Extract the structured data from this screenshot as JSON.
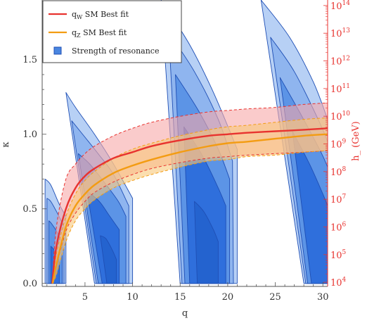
{
  "chart_data": {
    "type": "line",
    "title": "",
    "xlabel": "q",
    "ylabel": "κ",
    "y2label": "h_ (GeV)",
    "xlim": [
      0.5,
      30.5
    ],
    "ylim": [
      -0.02,
      1.9
    ],
    "y2lim_log10": [
      3.85,
      14.2
    ],
    "x_ticks": [
      5,
      10,
      15,
      20,
      25,
      30
    ],
    "y_ticks": [
      {
        "value": 0.0,
        "label": "0.0"
      },
      {
        "value": 0.5,
        "label": "0.5"
      },
      {
        "value": 1.0,
        "label": "1.0"
      },
      {
        "value": 1.5,
        "label": "1.5"
      }
    ],
    "y2_ticks": [
      {
        "exp": 4,
        "base": "10",
        "sup": "4"
      },
      {
        "exp": 5,
        "base": "10",
        "sup": "5"
      },
      {
        "exp": 6,
        "base": "10",
        "sup": "6"
      },
      {
        "exp": 7,
        "base": "10",
        "sup": "7"
      },
      {
        "exp": 8,
        "base": "10",
        "sup": "8"
      },
      {
        "exp": 9,
        "base": "10",
        "sup": "9"
      },
      {
        "exp": 10,
        "base": "10",
        "sup": "10"
      },
      {
        "exp": 11,
        "base": "10",
        "sup": "11"
      },
      {
        "exp": 12,
        "base": "10",
        "sup": "12"
      },
      {
        "exp": 13,
        "base": "10",
        "sup": "13"
      },
      {
        "exp": 14,
        "base": "10",
        "sup": "14"
      }
    ],
    "legend": {
      "placement": "top-left",
      "entries": [
        {
          "main": "q",
          "sub": "W",
          "rest": "  SM Best fit",
          "color": "#e8332f",
          "kind": "line"
        },
        {
          "main": "q",
          "sub": "Z",
          "rest": "  SM Best fit",
          "color": "#f39c12",
          "kind": "line"
        },
        {
          "main": "Strength of resonance",
          "sub": "",
          "rest": "",
          "color": "#4a86e0",
          "kind": "box"
        }
      ]
    },
    "series": [
      {
        "name": "q_W SM Best fit",
        "color": "#e8332f",
        "x": [
          1.55,
          2,
          3,
          4,
          5,
          6,
          8,
          10,
          12,
          15,
          18,
          20,
          22,
          25,
          28,
          30.5
        ],
        "y": [
          0.0,
          0.25,
          0.5,
          0.64,
          0.72,
          0.77,
          0.84,
          0.88,
          0.92,
          0.96,
          0.99,
          1.0,
          1.01,
          1.02,
          1.03,
          1.04
        ],
        "band_upper": [
          0.0,
          0.38,
          0.7,
          0.8,
          0.87,
          0.92,
          0.99,
          1.04,
          1.08,
          1.12,
          1.15,
          1.16,
          1.17,
          1.18,
          1.2,
          1.21
        ],
        "band_lower": [
          0.0,
          0.12,
          0.35,
          0.47,
          0.55,
          0.61,
          0.68,
          0.73,
          0.77,
          0.81,
          0.84,
          0.85,
          0.86,
          0.87,
          0.88,
          0.89
        ]
      },
      {
        "name": "q_Z SM Best fit",
        "color": "#f39c12",
        "x": [
          1.6,
          2,
          3,
          4,
          5,
          6,
          8,
          10,
          12,
          15,
          18,
          20,
          22,
          25,
          28,
          30.5
        ],
        "y": [
          0.0,
          0.13,
          0.38,
          0.52,
          0.6,
          0.66,
          0.74,
          0.79,
          0.83,
          0.88,
          0.92,
          0.94,
          0.95,
          0.97,
          0.99,
          1.0
        ],
        "band_upper": [
          0.0,
          0.2,
          0.45,
          0.6,
          0.69,
          0.75,
          0.84,
          0.9,
          0.94,
          0.99,
          1.03,
          1.05,
          1.06,
          1.08,
          1.1,
          1.11
        ],
        "band_lower": [
          0.0,
          0.06,
          0.28,
          0.42,
          0.5,
          0.56,
          0.64,
          0.69,
          0.73,
          0.78,
          0.82,
          0.83,
          0.85,
          0.86,
          0.88,
          0.89
        ]
      }
    ],
    "resonance_regions": [
      {
        "name": "resonance-1",
        "levels": [
          {
            "top": [
              [
                0.8,
                0.7
              ],
              [
                1.4,
                0.66
              ],
              [
                2.3,
                0.53
              ],
              [
                3.0,
                0.45
              ]
            ],
            "bot": [
              [
                0.8,
                0
              ],
              [
                3.0,
                0
              ]
            ],
            "color": "#b7d0f5"
          },
          {
            "top": [
              [
                1.0,
                0.57
              ],
              [
                1.4,
                0.55
              ],
              [
                2.1,
                0.47
              ],
              [
                2.8,
                0.38
              ]
            ],
            "bot": [
              [
                1.0,
                0
              ],
              [
                2.8,
                0
              ]
            ],
            "color": "#8fb5ef"
          },
          {
            "top": [
              [
                1.2,
                0.42
              ],
              [
                1.5,
                0.4
              ],
              [
                2.1,
                0.34
              ],
              [
                2.6,
                0.27
              ]
            ],
            "bot": [
              [
                1.2,
                0
              ],
              [
                2.6,
                0
              ]
            ],
            "color": "#5c94e6"
          },
          {
            "top": [
              [
                1.4,
                0.25
              ],
              [
                1.7,
                0.23
              ],
              [
                2.1,
                0.19
              ],
              [
                2.3,
                0.14
              ]
            ],
            "bot": [
              [
                1.4,
                0
              ],
              [
                2.3,
                0
              ]
            ],
            "color": "#2f6fdc"
          }
        ]
      },
      {
        "name": "resonance-2",
        "levels": [
          {
            "top": [
              [
                3.0,
                1.28
              ],
              [
                4.0,
                1.18
              ],
              [
                6.0,
                1.0
              ],
              [
                8.0,
                0.8
              ],
              [
                10.0,
                0.57
              ]
            ],
            "bot": [
              [
                6.0,
                0
              ],
              [
                10.0,
                0
              ]
            ],
            "color": "#b7d0f5"
          },
          {
            "top": [
              [
                3.6,
                1.09
              ],
              [
                5.0,
                0.98
              ],
              [
                6.5,
                0.86
              ],
              [
                8.0,
                0.73
              ],
              [
                9.6,
                0.52
              ]
            ],
            "bot": [
              [
                6.2,
                0
              ],
              [
                9.6,
                0
              ]
            ],
            "color": "#8fb5ef"
          },
          {
            "top": [
              [
                4.3,
                0.87
              ],
              [
                5.5,
                0.8
              ],
              [
                7.0,
                0.68
              ],
              [
                8.5,
                0.55
              ],
              [
                9.3,
                0.45
              ]
            ],
            "bot": [
              [
                6.4,
                0
              ],
              [
                9.3,
                0
              ]
            ],
            "color": "#5c94e6"
          },
          {
            "top": [
              [
                5.2,
                0.62
              ],
              [
                6.5,
                0.55
              ],
              [
                7.5,
                0.46
              ],
              [
                8.6,
                0.36
              ]
            ],
            "bot": [
              [
                6.8,
                0
              ],
              [
                8.6,
                0
              ]
            ],
            "color": "#2f6fdc"
          },
          {
            "top": [
              [
                6.6,
                0.32
              ],
              [
                7.2,
                0.3
              ],
              [
                7.9,
                0.22
              ],
              [
                8.3,
                0.16
              ]
            ],
            "bot": [
              [
                7.3,
                0
              ],
              [
                8.3,
                0
              ]
            ],
            "color": "#2463cf"
          }
        ]
      },
      {
        "name": "resonance-3",
        "levels": [
          {
            "top": [
              [
                13.0,
                1.9
              ],
              [
                16.0,
                1.6
              ],
              [
                18.5,
                1.28
              ],
              [
                21.0,
                0.9
              ]
            ],
            "bot": [
              [
                15.0,
                0
              ],
              [
                21.0,
                0
              ]
            ],
            "color": "#b7d0f5"
          },
          {
            "top": [
              [
                13.8,
                1.68
              ],
              [
                16.5,
                1.42
              ],
              [
                19.0,
                1.1
              ],
              [
                20.5,
                0.82
              ]
            ],
            "bot": [
              [
                15.2,
                0
              ],
              [
                20.6,
                0
              ]
            ],
            "color": "#8fb5ef"
          },
          {
            "top": [
              [
                14.5,
                1.4
              ],
              [
                17.0,
                1.15
              ],
              [
                19.0,
                0.9
              ],
              [
                20.2,
                0.7
              ]
            ],
            "bot": [
              [
                15.5,
                0
              ],
              [
                20.2,
                0
              ]
            ],
            "color": "#5c94e6"
          },
          {
            "top": [
              [
                15.4,
                1.05
              ],
              [
                17.4,
                0.85
              ],
              [
                19.0,
                0.64
              ],
              [
                19.8,
                0.52
              ]
            ],
            "bot": [
              [
                16.0,
                0
              ],
              [
                19.8,
                0
              ]
            ],
            "color": "#2f6fdc"
          },
          {
            "top": [
              [
                16.5,
                0.55
              ],
              [
                17.5,
                0.48
              ],
              [
                18.5,
                0.36
              ],
              [
                19.0,
                0.28
              ]
            ],
            "bot": [
              [
                16.8,
                0
              ],
              [
                19.0,
                0
              ]
            ],
            "color": "#2463cf"
          }
        ]
      },
      {
        "name": "resonance-4",
        "levels": [
          {
            "top": [
              [
                23.5,
                1.9
              ],
              [
                26.5,
                1.65
              ],
              [
                29.0,
                1.35
              ],
              [
                30.5,
                1.1
              ]
            ],
            "bot": [
              [
                28.0,
                0
              ],
              [
                30.5,
                0
              ]
            ],
            "color": "#b7d0f5"
          },
          {
            "top": [
              [
                24.5,
                1.65
              ],
              [
                27.0,
                1.42
              ],
              [
                29.5,
                1.1
              ],
              [
                30.5,
                0.95
              ]
            ],
            "bot": [
              [
                28.2,
                0
              ],
              [
                30.5,
                0
              ]
            ],
            "color": "#8fb5ef"
          },
          {
            "top": [
              [
                25.5,
                1.38
              ],
              [
                27.8,
                1.12
              ],
              [
                29.8,
                0.88
              ],
              [
                30.5,
                0.78
              ]
            ],
            "bot": [
              [
                28.4,
                0
              ],
              [
                30.5,
                0
              ]
            ],
            "color": "#5c94e6"
          },
          {
            "top": [
              [
                26.8,
                1.02
              ],
              [
                28.6,
                0.8
              ],
              [
                30.0,
                0.6
              ],
              [
                30.5,
                0.52
              ]
            ],
            "bot": [
              [
                28.8,
                0
              ],
              [
                30.5,
                0
              ]
            ],
            "color": "#2f6fdc"
          }
        ]
      }
    ],
    "colors": {
      "axis_left": "#555555",
      "axis_right": "#e8332f",
      "red_band": "#f6a8a8",
      "orange_band": "#f8c87a",
      "outline": "#1f4fb5"
    }
  }
}
